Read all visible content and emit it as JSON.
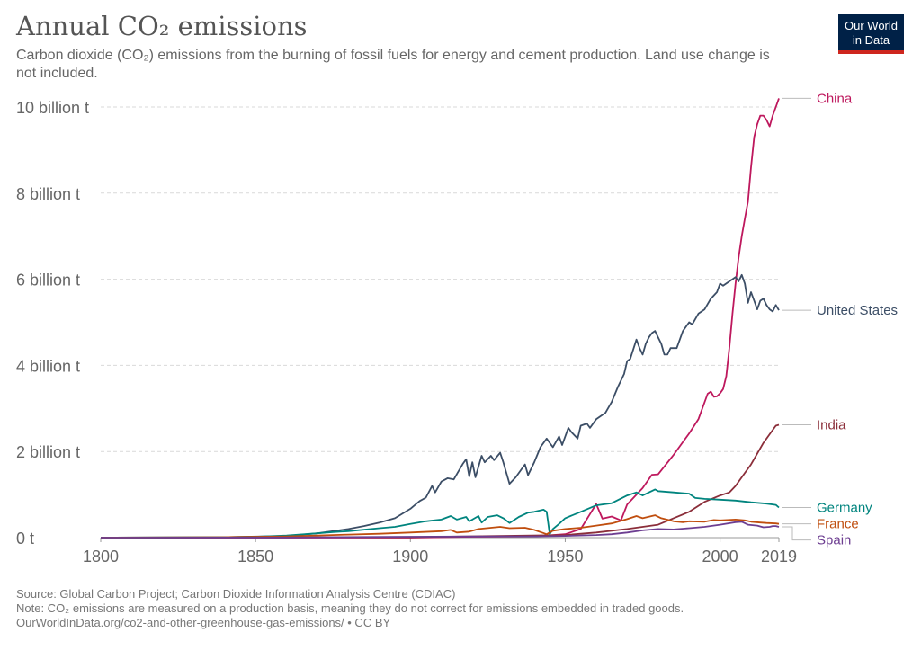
{
  "header": {
    "title": "Annual CO₂ emissions",
    "subtitle": "Carbon dioxide (CO₂) emissions from the burning of fossil fuels for energy and cement production. Land use change is not included."
  },
  "logo": {
    "line1": "Our World",
    "line2": "in Data",
    "bg_color": "#002147",
    "accent_color": "#ce261e"
  },
  "footer": {
    "source": "Source: Global Carbon Project; Carbon Dioxide Information Analysis Centre (CDIAC)",
    "note": "Note: CO₂ emissions are measured on a production basis, meaning they do not correct for emissions embedded in traded goods.",
    "url": "OurWorldInData.org/co2-and-other-greenhouse-gas-emissions/ • CC BY"
  },
  "chart_data": {
    "type": "line",
    "xlim": [
      1800,
      2019
    ],
    "ylim": [
      0,
      10
    ],
    "y_unit": "billion tonnes",
    "grid": "horizontal dashed",
    "x_ticks": [
      {
        "value": 1800,
        "label": "1800"
      },
      {
        "value": 1850,
        "label": "1850"
      },
      {
        "value": 1900,
        "label": "1900"
      },
      {
        "value": 1950,
        "label": "1950"
      },
      {
        "value": 2000,
        "label": "2000"
      },
      {
        "value": 2019,
        "label": "2019"
      }
    ],
    "y_ticks": [
      {
        "value": 0,
        "label": "0 t"
      },
      {
        "value": 2,
        "label": "2 billion t"
      },
      {
        "value": 4,
        "label": "4 billion t"
      },
      {
        "value": 6,
        "label": "6 billion t"
      },
      {
        "value": 8,
        "label": "8 billion t"
      },
      {
        "value": 10,
        "label": "10 billion t"
      }
    ],
    "legend_placement": "right, labels at line ends",
    "series": [
      {
        "name": "China",
        "color": "#be185d",
        "points": [
          [
            1800,
            0
          ],
          [
            1900,
            0
          ],
          [
            1920,
            0.02
          ],
          [
            1940,
            0.03
          ],
          [
            1950,
            0.08
          ],
          [
            1955,
            0.2
          ],
          [
            1958,
            0.55
          ],
          [
            1960,
            0.78
          ],
          [
            1962,
            0.44
          ],
          [
            1965,
            0.49
          ],
          [
            1968,
            0.4
          ],
          [
            1970,
            0.77
          ],
          [
            1975,
            1.15
          ],
          [
            1978,
            1.46
          ],
          [
            1980,
            1.47
          ],
          [
            1985,
            1.92
          ],
          [
            1990,
            2.42
          ],
          [
            1993,
            2.75
          ],
          [
            1996,
            3.34
          ],
          [
            1997,
            3.39
          ],
          [
            1998,
            3.27
          ],
          [
            1999,
            3.28
          ],
          [
            2000,
            3.35
          ],
          [
            2001,
            3.45
          ],
          [
            2002,
            3.75
          ],
          [
            2003,
            4.4
          ],
          [
            2004,
            5.2
          ],
          [
            2005,
            5.9
          ],
          [
            2006,
            6.5
          ],
          [
            2007,
            7.0
          ],
          [
            2008,
            7.4
          ],
          [
            2009,
            7.8
          ],
          [
            2010,
            8.6
          ],
          [
            2011,
            9.3
          ],
          [
            2012,
            9.6
          ],
          [
            2013,
            9.8
          ],
          [
            2014,
            9.8
          ],
          [
            2015,
            9.7
          ],
          [
            2016,
            9.55
          ],
          [
            2017,
            9.8
          ],
          [
            2018,
            10.0
          ],
          [
            2019,
            10.2
          ]
        ]
      },
      {
        "name": "United States",
        "color": "#3c4e66",
        "points": [
          [
            1800,
            0
          ],
          [
            1840,
            0.01
          ],
          [
            1860,
            0.04
          ],
          [
            1870,
            0.1
          ],
          [
            1880,
            0.2
          ],
          [
            1885,
            0.27
          ],
          [
            1890,
            0.35
          ],
          [
            1895,
            0.45
          ],
          [
            1900,
            0.67
          ],
          [
            1903,
            0.85
          ],
          [
            1905,
            0.93
          ],
          [
            1907,
            1.2
          ],
          [
            1908,
            1.05
          ],
          [
            1910,
            1.3
          ],
          [
            1912,
            1.38
          ],
          [
            1914,
            1.35
          ],
          [
            1916,
            1.6
          ],
          [
            1917,
            1.72
          ],
          [
            1918,
            1.82
          ],
          [
            1919,
            1.42
          ],
          [
            1920,
            1.75
          ],
          [
            1921,
            1.4
          ],
          [
            1923,
            1.9
          ],
          [
            1924,
            1.75
          ],
          [
            1926,
            1.9
          ],
          [
            1927,
            1.8
          ],
          [
            1929,
            1.97
          ],
          [
            1930,
            1.75
          ],
          [
            1932,
            1.25
          ],
          [
            1934,
            1.4
          ],
          [
            1936,
            1.6
          ],
          [
            1937,
            1.7
          ],
          [
            1938,
            1.45
          ],
          [
            1940,
            1.75
          ],
          [
            1942,
            2.1
          ],
          [
            1944,
            2.3
          ],
          [
            1945,
            2.2
          ],
          [
            1946,
            2.1
          ],
          [
            1948,
            2.35
          ],
          [
            1949,
            2.15
          ],
          [
            1951,
            2.55
          ],
          [
            1952,
            2.45
          ],
          [
            1954,
            2.3
          ],
          [
            1955,
            2.6
          ],
          [
            1957,
            2.65
          ],
          [
            1958,
            2.55
          ],
          [
            1960,
            2.75
          ],
          [
            1963,
            2.9
          ],
          [
            1965,
            3.15
          ],
          [
            1967,
            3.5
          ],
          [
            1969,
            3.8
          ],
          [
            1970,
            4.1
          ],
          [
            1971,
            4.15
          ],
          [
            1973,
            4.6
          ],
          [
            1974,
            4.4
          ],
          [
            1975,
            4.25
          ],
          [
            1976,
            4.5
          ],
          [
            1977,
            4.65
          ],
          [
            1978,
            4.75
          ],
          [
            1979,
            4.8
          ],
          [
            1980,
            4.65
          ],
          [
            1981,
            4.5
          ],
          [
            1982,
            4.25
          ],
          [
            1983,
            4.25
          ],
          [
            1984,
            4.4
          ],
          [
            1986,
            4.4
          ],
          [
            1988,
            4.8
          ],
          [
            1990,
            5.0
          ],
          [
            1991,
            4.95
          ],
          [
            1993,
            5.2
          ],
          [
            1995,
            5.3
          ],
          [
            1997,
            5.55
          ],
          [
            1999,
            5.7
          ],
          [
            2000,
            5.9
          ],
          [
            2001,
            5.85
          ],
          [
            2003,
            5.95
          ],
          [
            2005,
            6.05
          ],
          [
            2006,
            5.95
          ],
          [
            2007,
            6.1
          ],
          [
            2008,
            5.9
          ],
          [
            2009,
            5.45
          ],
          [
            2010,
            5.7
          ],
          [
            2011,
            5.5
          ],
          [
            2012,
            5.3
          ],
          [
            2013,
            5.5
          ],
          [
            2014,
            5.55
          ],
          [
            2015,
            5.4
          ],
          [
            2016,
            5.3
          ],
          [
            2017,
            5.25
          ],
          [
            2018,
            5.4
          ],
          [
            2019,
            5.28
          ]
        ]
      },
      {
        "name": "India",
        "color": "#8b2e3a",
        "points": [
          [
            1800,
            0
          ],
          [
            1900,
            0.01
          ],
          [
            1950,
            0.06
          ],
          [
            1960,
            0.12
          ],
          [
            1970,
            0.2
          ],
          [
            1975,
            0.25
          ],
          [
            1980,
            0.3
          ],
          [
            1985,
            0.45
          ],
          [
            1990,
            0.6
          ],
          [
            1995,
            0.83
          ],
          [
            2000,
            0.98
          ],
          [
            2003,
            1.05
          ],
          [
            2005,
            1.2
          ],
          [
            2008,
            1.5
          ],
          [
            2010,
            1.7
          ],
          [
            2012,
            1.95
          ],
          [
            2014,
            2.2
          ],
          [
            2016,
            2.4
          ],
          [
            2018,
            2.6
          ],
          [
            2019,
            2.62
          ]
        ]
      },
      {
        "name": "Germany",
        "color": "#00847e",
        "points": [
          [
            1800,
            0
          ],
          [
            1840,
            0.01
          ],
          [
            1850,
            0.02
          ],
          [
            1860,
            0.05
          ],
          [
            1870,
            0.1
          ],
          [
            1875,
            0.13
          ],
          [
            1880,
            0.15
          ],
          [
            1890,
            0.22
          ],
          [
            1895,
            0.25
          ],
          [
            1900,
            0.32
          ],
          [
            1905,
            0.38
          ],
          [
            1910,
            0.42
          ],
          [
            1913,
            0.5
          ],
          [
            1915,
            0.42
          ],
          [
            1918,
            0.48
          ],
          [
            1919,
            0.38
          ],
          [
            1920,
            0.42
          ],
          [
            1922,
            0.5
          ],
          [
            1923,
            0.35
          ],
          [
            1925,
            0.48
          ],
          [
            1928,
            0.52
          ],
          [
            1930,
            0.45
          ],
          [
            1932,
            0.34
          ],
          [
            1935,
            0.48
          ],
          [
            1938,
            0.58
          ],
          [
            1940,
            0.6
          ],
          [
            1943,
            0.65
          ],
          [
            1944,
            0.6
          ],
          [
            1945,
            0.08
          ],
          [
            1946,
            0.2
          ],
          [
            1948,
            0.32
          ],
          [
            1950,
            0.45
          ],
          [
            1955,
            0.6
          ],
          [
            1960,
            0.75
          ],
          [
            1965,
            0.8
          ],
          [
            1970,
            0.98
          ],
          [
            1973,
            1.05
          ],
          [
            1975,
            0.98
          ],
          [
            1979,
            1.12
          ],
          [
            1980,
            1.08
          ],
          [
            1985,
            1.05
          ],
          [
            1990,
            1.02
          ],
          [
            1992,
            0.92
          ],
          [
            1995,
            0.9
          ],
          [
            2000,
            0.88
          ],
          [
            2005,
            0.86
          ],
          [
            2010,
            0.82
          ],
          [
            2015,
            0.79
          ],
          [
            2018,
            0.76
          ],
          [
            2019,
            0.7
          ]
        ]
      },
      {
        "name": "France",
        "color": "#c04e0e",
        "points": [
          [
            1800,
            0
          ],
          [
            1840,
            0.01
          ],
          [
            1860,
            0.03
          ],
          [
            1870,
            0.05
          ],
          [
            1880,
            0.07
          ],
          [
            1890,
            0.09
          ],
          [
            1900,
            0.12
          ],
          [
            1910,
            0.15
          ],
          [
            1913,
            0.18
          ],
          [
            1915,
            0.12
          ],
          [
            1919,
            0.14
          ],
          [
            1922,
            0.2
          ],
          [
            1929,
            0.25
          ],
          [
            1932,
            0.22
          ],
          [
            1937,
            0.23
          ],
          [
            1940,
            0.18
          ],
          [
            1944,
            0.08
          ],
          [
            1946,
            0.16
          ],
          [
            1950,
            0.2
          ],
          [
            1955,
            0.23
          ],
          [
            1960,
            0.28
          ],
          [
            1965,
            0.33
          ],
          [
            1970,
            0.43
          ],
          [
            1973,
            0.5
          ],
          [
            1975,
            0.45
          ],
          [
            1979,
            0.52
          ],
          [
            1981,
            0.45
          ],
          [
            1985,
            0.38
          ],
          [
            1988,
            0.36
          ],
          [
            1990,
            0.38
          ],
          [
            1995,
            0.37
          ],
          [
            1998,
            0.41
          ],
          [
            2000,
            0.4
          ],
          [
            2005,
            0.42
          ],
          [
            2008,
            0.4
          ],
          [
            2010,
            0.37
          ],
          [
            2013,
            0.35
          ],
          [
            2015,
            0.34
          ],
          [
            2018,
            0.33
          ],
          [
            2019,
            0.32
          ]
        ]
      },
      {
        "name": "Spain",
        "color": "#6d3e91",
        "points": [
          [
            1800,
            0
          ],
          [
            1860,
            0.005
          ],
          [
            1900,
            0.02
          ],
          [
            1930,
            0.03
          ],
          [
            1940,
            0.03
          ],
          [
            1950,
            0.04
          ],
          [
            1960,
            0.06
          ],
          [
            1965,
            0.08
          ],
          [
            1970,
            0.12
          ],
          [
            1975,
            0.17
          ],
          [
            1980,
            0.2
          ],
          [
            1985,
            0.19
          ],
          [
            1990,
            0.22
          ],
          [
            1995,
            0.25
          ],
          [
            2000,
            0.3
          ],
          [
            2005,
            0.36
          ],
          [
            2007,
            0.37
          ],
          [
            2009,
            0.3
          ],
          [
            2012,
            0.28
          ],
          [
            2014,
            0.24
          ],
          [
            2016,
            0.25
          ],
          [
            2017,
            0.27
          ],
          [
            2018,
            0.27
          ],
          [
            2019,
            0.25
          ]
        ]
      }
    ]
  }
}
